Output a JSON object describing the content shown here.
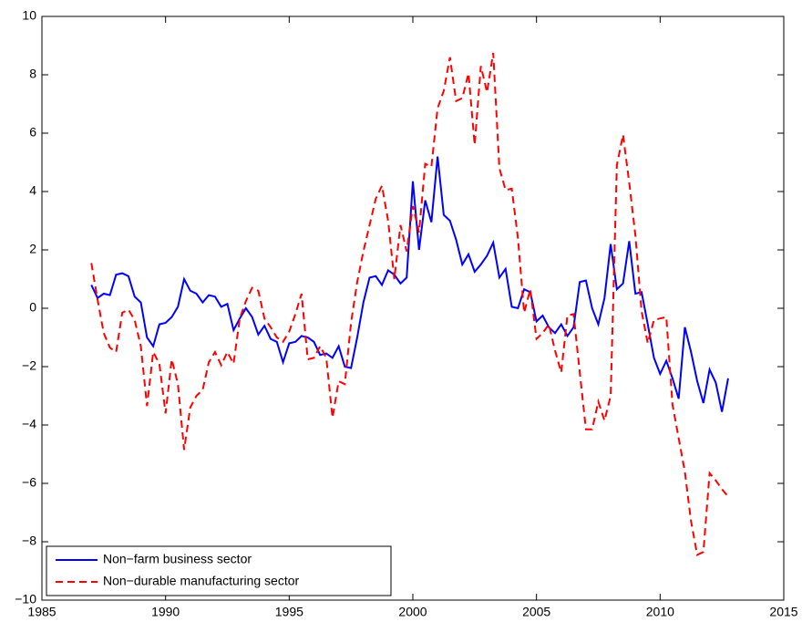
{
  "chart_data": {
    "type": "line",
    "x": [
      1987,
      1987.25,
      1987.5,
      1987.75,
      1988,
      1988.25,
      1988.5,
      1988.75,
      1989,
      1989.25,
      1989.5,
      1989.75,
      1990,
      1990.25,
      1990.5,
      1990.75,
      1991,
      1991.25,
      1991.5,
      1991.75,
      1992,
      1992.25,
      1992.5,
      1992.75,
      1993,
      1993.25,
      1993.5,
      1993.75,
      1994,
      1994.25,
      1994.5,
      1994.75,
      1995,
      1995.25,
      1995.5,
      1995.75,
      1996,
      1996.25,
      1996.5,
      1996.75,
      1997,
      1997.25,
      1997.5,
      1997.75,
      1998,
      1998.25,
      1998.5,
      1998.75,
      1999,
      1999.25,
      1999.5,
      1999.75,
      2000,
      2000.25,
      2000.5,
      2000.75,
      2001,
      2001.25,
      2001.5,
      2001.75,
      2002,
      2002.25,
      2002.5,
      2002.75,
      2003,
      2003.25,
      2003.5,
      2003.75,
      2004,
      2004.25,
      2004.5,
      2004.75,
      2005,
      2005.25,
      2005.5,
      2005.75,
      2006,
      2006.25,
      2006.5,
      2006.75,
      2007,
      2007.25,
      2007.5,
      2007.75,
      2008,
      2008.25,
      2008.5,
      2008.75,
      2009,
      2009.25,
      2009.5,
      2009.75,
      2010,
      2010.25,
      2010.5,
      2010.75,
      2011,
      2011.25,
      2011.5,
      2011.75,
      2012,
      2012.25,
      2012.5,
      2012.75
    ],
    "series": [
      {
        "name": "Non−farm business sector",
        "color": "#0000ff",
        "dash": "solid",
        "values": [
          0.8,
          0.35,
          0.5,
          0.45,
          1.15,
          1.2,
          1.1,
          0.4,
          0.2,
          -1.0,
          -1.3,
          -0.55,
          -0.5,
          -0.3,
          0.05,
          1.0,
          0.6,
          0.5,
          0.2,
          0.45,
          0.4,
          0.05,
          0.15,
          -0.75,
          -0.35,
          0.0,
          -0.3,
          -0.9,
          -0.6,
          -1.05,
          -1.15,
          -1.85,
          -1.2,
          -1.15,
          -0.95,
          -1.0,
          -1.15,
          -1.6,
          -1.55,
          -1.7,
          -1.3,
          -2.0,
          -2.05,
          -1.0,
          0.2,
          1.05,
          1.1,
          0.8,
          1.3,
          1.15,
          0.85,
          1.05,
          4.35,
          2.0,
          3.7,
          2.95,
          5.2,
          3.2,
          3.0,
          2.35,
          1.5,
          1.85,
          1.25,
          1.5,
          1.8,
          2.25,
          1.05,
          1.35,
          0.05,
          0.0,
          0.65,
          0.55,
          -0.45,
          -0.25,
          -0.65,
          -0.85,
          -0.55,
          -0.95,
          -0.65,
          0.9,
          0.95,
          0.0,
          -0.55,
          0.35,
          2.2,
          0.65,
          0.85,
          2.3,
          0.5,
          0.55,
          -0.55,
          -1.7,
          -2.25,
          -1.8,
          -2.4,
          -3.1,
          -0.65,
          -1.5,
          -2.5,
          -3.25,
          -2.1,
          -2.55,
          -3.55,
          -2.4
        ]
      },
      {
        "name": "Non−durable manufacturing sector",
        "color": "#ff0000",
        "dash": "dashed",
        "values": [
          1.55,
          0.3,
          -0.85,
          -1.35,
          -1.5,
          -0.15,
          -0.05,
          -0.4,
          -1.3,
          -3.35,
          -1.5,
          -1.9,
          -3.6,
          -1.75,
          -2.6,
          -4.85,
          -3.4,
          -3.0,
          -2.8,
          -1.85,
          -1.5,
          -1.95,
          -1.5,
          -1.9,
          -0.35,
          0.25,
          0.7,
          0.6,
          -0.35,
          -0.65,
          -1.0,
          -1.15,
          -0.8,
          -0.2,
          0.5,
          -1.75,
          -1.7,
          -1.3,
          -1.7,
          -3.75,
          -2.5,
          -2.6,
          -0.5,
          0.9,
          1.95,
          2.85,
          3.75,
          4.2,
          3.0,
          1.0,
          2.85,
          1.95,
          3.5,
          2.6,
          4.95,
          4.85,
          6.85,
          7.45,
          8.6,
          7.1,
          7.2,
          8.05,
          5.6,
          8.3,
          7.4,
          8.75,
          4.8,
          4.05,
          4.1,
          2.4,
          -0.15,
          0.65,
          -1.05,
          -0.85,
          -0.55,
          -1.45,
          -2.2,
          -0.25,
          -0.2,
          -2.2,
          -4.15,
          -4.15,
          -3.2,
          -3.85,
          -3.0,
          4.9,
          5.95,
          4.3,
          2.5,
          -0.1,
          -1.2,
          -0.4,
          -0.35,
          -0.3,
          -3.3,
          -4.45,
          -5.6,
          -7.3,
          -8.45,
          -8.35,
          -5.65,
          -5.9,
          -6.2,
          -6.45
        ]
      }
    ],
    "xlim": [
      1985,
      2015
    ],
    "xticks": [
      1985,
      1990,
      1995,
      2000,
      2005,
      2010,
      2015
    ],
    "ylim": [
      -10,
      10
    ],
    "yticks": [
      {
        "value": -10,
        "label": "−10"
      },
      {
        "value": -8,
        "label": "−8"
      },
      {
        "value": -6,
        "label": "−6"
      },
      {
        "value": -4,
        "label": "−4"
      },
      {
        "value": -2,
        "label": "−2"
      },
      0,
      2,
      4,
      6,
      8,
      10
    ],
    "legend": "lower left"
  }
}
